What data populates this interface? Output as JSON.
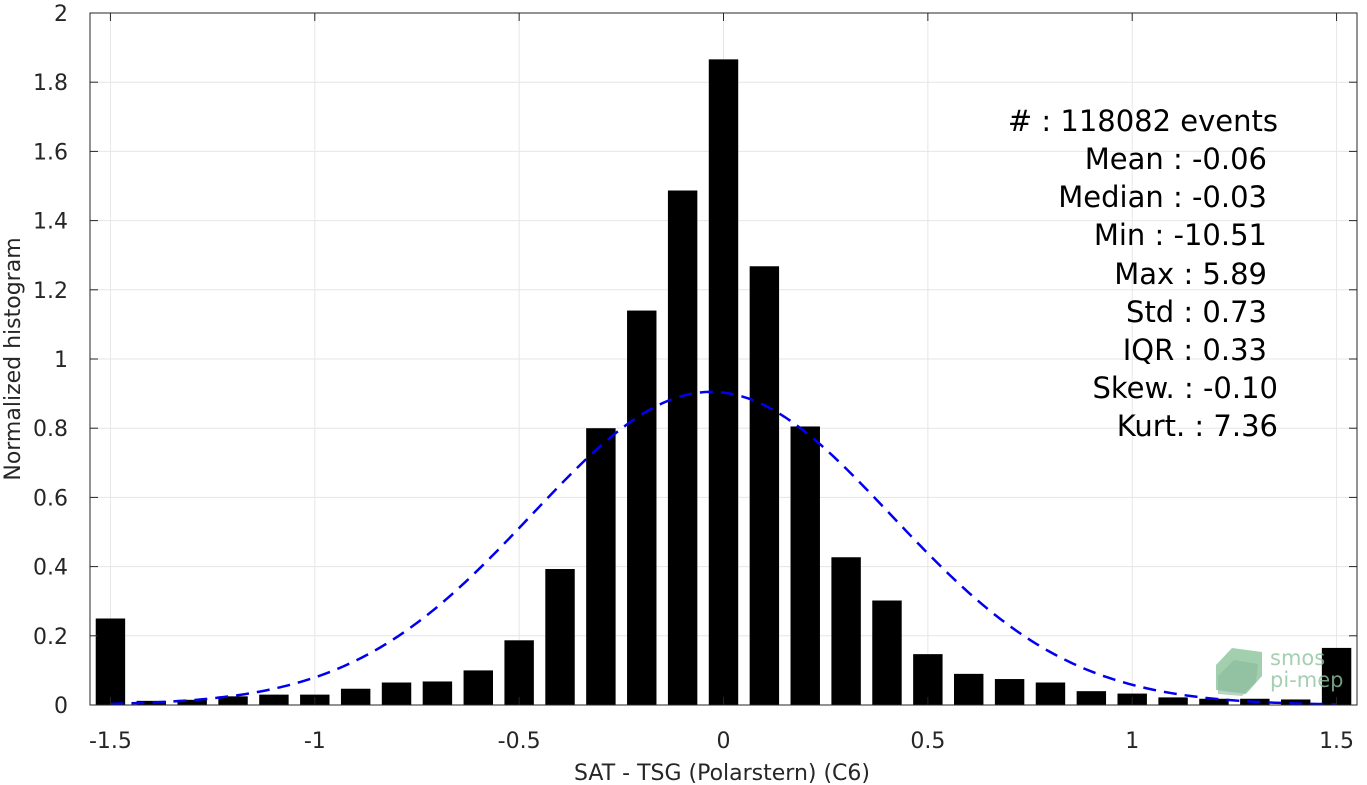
{
  "chart_data": {
    "type": "bar",
    "xlabel": "SAT - TSG (Polarstern) (C6)",
    "ylabel": "Normalized histogram",
    "xlim": [
      -1.55,
      1.55
    ],
    "ylim": [
      0,
      2
    ],
    "x_ticks": [
      -1.5,
      -1,
      -0.5,
      0,
      0.5,
      1,
      1.5
    ],
    "x_tick_labels": [
      "-1.5",
      "-1",
      "-0.5",
      "0",
      "0.5",
      "1",
      "1.5"
    ],
    "y_ticks": [
      0,
      0.2,
      0.4,
      0.6,
      0.8,
      1,
      1.2,
      1.4,
      1.6,
      1.8,
      2
    ],
    "y_tick_labels": [
      "0",
      "0.2",
      "0.4",
      "0.6",
      "0.8",
      "1",
      "1.2",
      "1.4",
      "1.6",
      "1.8",
      "2"
    ],
    "grid": true,
    "bin_width": 0.1,
    "bar_color": "#000000",
    "bins": [
      {
        "x": -1.5,
        "value": 0.25
      },
      {
        "x": -1.4,
        "value": 0.012
      },
      {
        "x": -1.3,
        "value": 0.015
      },
      {
        "x": -1.2,
        "value": 0.025
      },
      {
        "x": -1.1,
        "value": 0.03
      },
      {
        "x": -1.0,
        "value": 0.03
      },
      {
        "x": -0.9,
        "value": 0.047
      },
      {
        "x": -0.8,
        "value": 0.065
      },
      {
        "x": -0.7,
        "value": 0.068
      },
      {
        "x": -0.6,
        "value": 0.1
      },
      {
        "x": -0.5,
        "value": 0.187
      },
      {
        "x": -0.4,
        "value": 0.393
      },
      {
        "x": -0.3,
        "value": 0.8
      },
      {
        "x": -0.2,
        "value": 1.14
      },
      {
        "x": -0.1,
        "value": 1.487
      },
      {
        "x": 0.0,
        "value": 1.866
      },
      {
        "x": 0.1,
        "value": 1.268
      },
      {
        "x": 0.2,
        "value": 0.805
      },
      {
        "x": 0.3,
        "value": 0.427
      },
      {
        "x": 0.4,
        "value": 0.302
      },
      {
        "x": 0.5,
        "value": 0.147
      },
      {
        "x": 0.6,
        "value": 0.09
      },
      {
        "x": 0.7,
        "value": 0.075
      },
      {
        "x": 0.8,
        "value": 0.065
      },
      {
        "x": 0.9,
        "value": 0.04
      },
      {
        "x": 1.0,
        "value": 0.033
      },
      {
        "x": 1.1,
        "value": 0.022
      },
      {
        "x": 1.2,
        "value": 0.018
      },
      {
        "x": 1.3,
        "value": 0.018
      },
      {
        "x": 1.4,
        "value": 0.016
      },
      {
        "x": 1.5,
        "value": 0.165
      }
    ],
    "fit_curve": {
      "type": "normal",
      "mean": -0.03,
      "std": 0.44,
      "peak": 0.905,
      "range": [
        -1.5,
        1.5
      ],
      "color": "#0000ee",
      "style": "dashed"
    },
    "annotations": [
      {
        "label": "#  : 118082 events"
      },
      {
        "label": "Mean : -0.06"
      },
      {
        "label": "Median : -0.03"
      },
      {
        "label": "Min : -10.51"
      },
      {
        "label": "Max : 5.89"
      },
      {
        "label": "Std : 0.73"
      },
      {
        "label": "IQR : 0.33"
      },
      {
        "label": "Skew. : -0.10"
      },
      {
        "label": "Kurt. : 7.36"
      }
    ]
  },
  "logo": {
    "line1": "smos",
    "line2": "pi-mep",
    "color": "#7fba8f"
  }
}
